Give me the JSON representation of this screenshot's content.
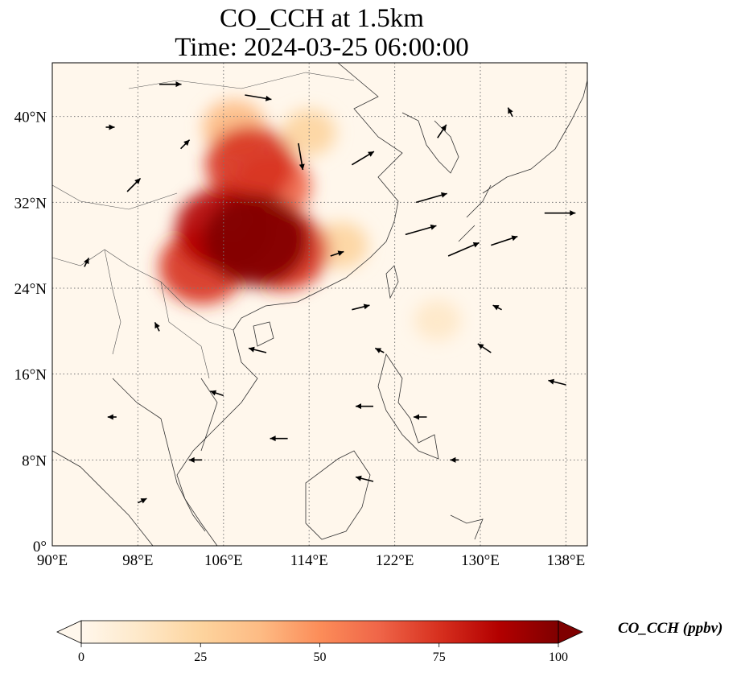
{
  "title_line1": "CO_CCH at 1.5km",
  "title_line2": "Time: 2024-03-25 06:00:00",
  "map": {
    "projection": "PlateCarree",
    "lon_range": [
      90,
      140
    ],
    "lat_range": [
      0,
      45
    ],
    "lon_ticks": [
      {
        "value": 90,
        "label": "90°E"
      },
      {
        "value": 98,
        "label": "98°E"
      },
      {
        "value": 106,
        "label": "106°E"
      },
      {
        "value": 114,
        "label": "114°E"
      },
      {
        "value": 122,
        "label": "122°E"
      },
      {
        "value": 130,
        "label": "130°E"
      },
      {
        "value": 138,
        "label": "138°E"
      }
    ],
    "lat_ticks": [
      {
        "value": 0,
        "label": "0°"
      },
      {
        "value": 8,
        "label": "8°N"
      },
      {
        "value": 16,
        "label": "16°N"
      },
      {
        "value": 24,
        "label": "24°N"
      },
      {
        "value": 32,
        "label": "32°N"
      },
      {
        "value": 40,
        "label": "40°N"
      }
    ],
    "gridlines": "dotted",
    "field_variable": "CO_CCH",
    "field_units": "ppbv",
    "plume_regions": [
      {
        "lon": 109,
        "lat": 28.5,
        "value": 100
      },
      {
        "lon": 106,
        "lat": 29.5,
        "value": 85
      },
      {
        "lon": 104,
        "lat": 26.0,
        "value": 70
      },
      {
        "lon": 111.5,
        "lat": 27.5,
        "value": 80
      },
      {
        "lon": 108.5,
        "lat": 35.5,
        "value": 75
      },
      {
        "lon": 110.5,
        "lat": 33.5,
        "value": 60
      },
      {
        "lon": 107,
        "lat": 39.0,
        "value": 35
      },
      {
        "lon": 114,
        "lat": 38.5,
        "value": 20
      },
      {
        "lon": 117,
        "lat": 28.0,
        "value": 20
      },
      {
        "lon": 126,
        "lat": 21.0,
        "value": 10
      }
    ],
    "wind_vectors": [
      {
        "lon": 113,
        "lat": 37.5,
        "u": 1,
        "v": -6
      },
      {
        "lon": 118,
        "lat": 35.5,
        "u": 5,
        "v": 3
      },
      {
        "lon": 124,
        "lat": 32,
        "u": 7,
        "v": 2
      },
      {
        "lon": 123,
        "lat": 29,
        "u": 7,
        "v": 2
      },
      {
        "lon": 127,
        "lat": 27,
        "u": 7,
        "v": 3
      },
      {
        "lon": 131,
        "lat": 28,
        "u": 6,
        "v": 2
      },
      {
        "lon": 136,
        "lat": 31,
        "u": 7,
        "v": 0
      },
      {
        "lon": 108,
        "lat": 42,
        "u": 6,
        "v": -1
      },
      {
        "lon": 100,
        "lat": 43,
        "u": 5,
        "v": 0
      },
      {
        "lon": 97,
        "lat": 33,
        "u": 3,
        "v": 3
      },
      {
        "lon": 118,
        "lat": 22,
        "u": 4,
        "v": 1
      },
      {
        "lon": 110,
        "lat": 18,
        "u": -4,
        "v": 1
      },
      {
        "lon": 120,
        "lat": 13,
        "u": -4,
        "v": 0
      },
      {
        "lon": 112,
        "lat": 10,
        "u": -4,
        "v": 0
      },
      {
        "lon": 104,
        "lat": 8,
        "u": -3,
        "v": 0
      },
      {
        "lon": 96,
        "lat": 12,
        "u": -2,
        "v": 0
      },
      {
        "lon": 131,
        "lat": 18,
        "u": -3,
        "v": 2
      },
      {
        "lon": 138,
        "lat": 15,
        "u": -4,
        "v": 1
      },
      {
        "lon": 125,
        "lat": 12,
        "u": -3,
        "v": 0
      },
      {
        "lon": 128,
        "lat": 8,
        "u": -2,
        "v": 0
      },
      {
        "lon": 120,
        "lat": 6,
        "u": -4,
        "v": 1
      },
      {
        "lon": 100,
        "lat": 20,
        "u": -1,
        "v": 2
      },
      {
        "lon": 93,
        "lat": 26,
        "u": 1,
        "v": 2
      },
      {
        "lon": 133,
        "lat": 40,
        "u": -1,
        "v": 2
      },
      {
        "lon": 126,
        "lat": 38,
        "u": 2,
        "v": 3
      },
      {
        "lon": 102,
        "lat": 37,
        "u": 2,
        "v": 2
      },
      {
        "lon": 116,
        "lat": 27,
        "u": 3,
        "v": 1
      },
      {
        "lon": 121,
        "lat": 18,
        "u": -2,
        "v": 1
      },
      {
        "lon": 106,
        "lat": 14,
        "u": -3,
        "v": 1
      },
      {
        "lon": 98,
        "lat": 4,
        "u": 2,
        "v": 1
      },
      {
        "lon": 132,
        "lat": 22,
        "u": -2,
        "v": 1
      },
      {
        "lon": 95,
        "lat": 39,
        "u": 2,
        "v": 0
      }
    ]
  },
  "colorbar": {
    "label": "CO_CCH (ppbv)",
    "min": 0,
    "max": 100,
    "extend": "both",
    "colormap": "OrRd",
    "ticks": [
      "0",
      "25",
      "50",
      "75",
      "100"
    ],
    "tick_values": [
      0,
      25,
      50,
      75,
      100
    ],
    "colors": [
      "#fff7ec",
      "#fee8c8",
      "#fdd49e",
      "#fdbb84",
      "#fc8d59",
      "#ef6548",
      "#d7301f",
      "#b30000",
      "#7f0000"
    ]
  }
}
